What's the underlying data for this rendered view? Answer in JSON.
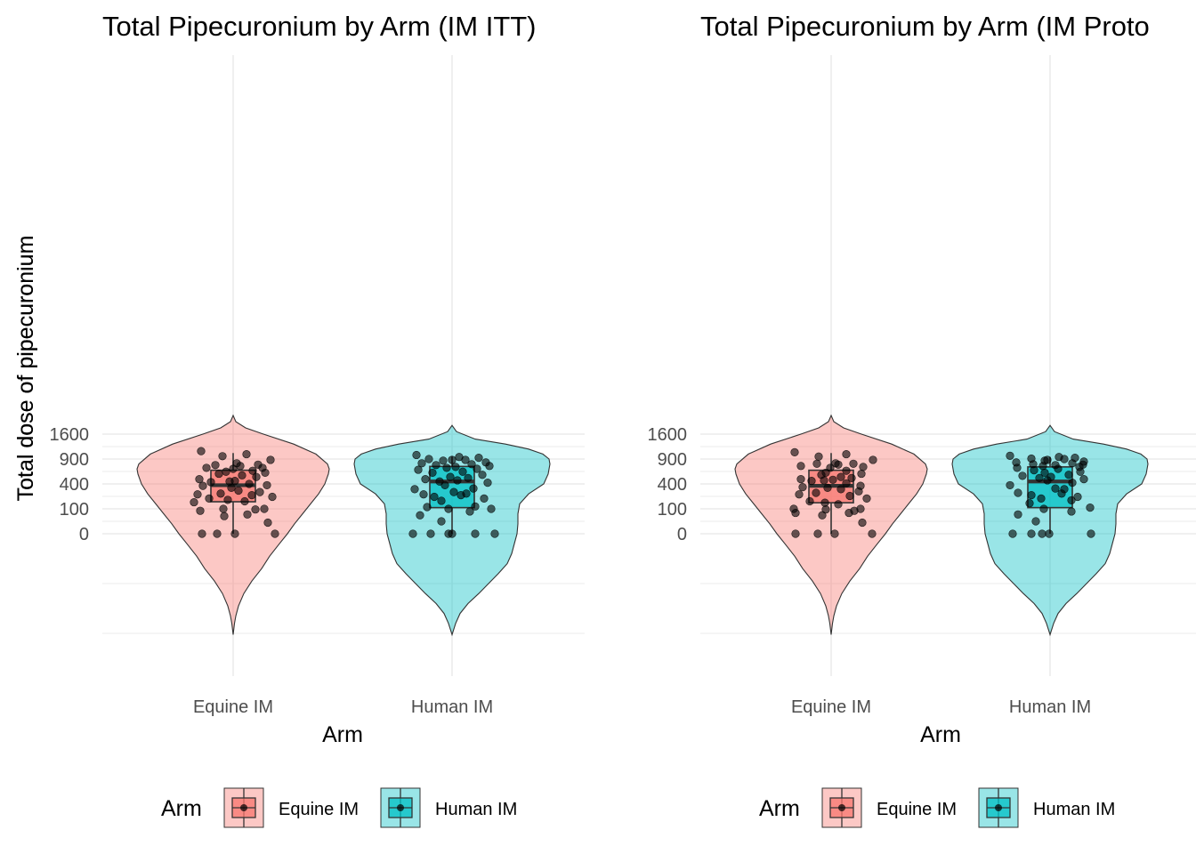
{
  "colors": {
    "equine": "#F8766D",
    "human": "#00BFC4",
    "grid": "#ebebeb",
    "outline": "#333333",
    "point": "#000000"
  },
  "legend": {
    "title": "Arm",
    "position": "bottom",
    "items": [
      "Equine IM",
      "Human IM"
    ]
  },
  "chart_data": [
    {
      "type": "violin",
      "title": "Total Pipecuronium by Arm (IM ITT)",
      "xlabel": "Arm",
      "ylabel": "Total dose of pipecuronium",
      "scale": "square-root",
      "categories": [
        "Equine IM",
        "Human IM"
      ],
      "ytick_values": [
        0,
        100,
        400,
        900,
        1600
      ],
      "ytick_labels": [
        "0",
        "100",
        "400",
        "900",
        "1600"
      ],
      "grid": true,
      "boxplot": [
        {
          "name": "Equine IM",
          "min": 0,
          "q1": 165,
          "median": 380,
          "q3": 650,
          "max": 1050
        },
        {
          "name": "Human IM",
          "min": 0,
          "q1": 110,
          "median": 440,
          "q3": 730,
          "max": 960
        }
      ],
      "points": [
        {
          "group": "Equine IM",
          "values": [
            1100,
            1020,
            970,
            880,
            800,
            770,
            760,
            740,
            700,
            700,
            680,
            640,
            620,
            600,
            580,
            550,
            520,
            480,
            450,
            440,
            430,
            400,
            380,
            370,
            340,
            300,
            280,
            260,
            250,
            240,
            220,
            200,
            185,
            170,
            160,
            100,
            100,
            95,
            85,
            60,
            50,
            20,
            0,
            0,
            0,
            0
          ]
        },
        {
          "group": "Human IM",
          "values": [
            1000,
            950,
            930,
            900,
            880,
            880,
            860,
            820,
            800,
            780,
            760,
            740,
            720,
            700,
            680,
            660,
            620,
            600,
            560,
            520,
            500,
            480,
            460,
            440,
            420,
            380,
            330,
            320,
            280,
            260,
            250,
            240,
            220,
            200,
            175,
            120,
            115,
            100,
            100,
            80,
            55,
            25,
            0,
            0,
            0,
            0,
            0,
            0
          ]
        }
      ]
    },
    {
      "type": "violin",
      "title": "Total Pipecuronium by Arm (IM Proto",
      "xlabel": "Arm",
      "ylabel": "Total dose of pipecuronium",
      "scale": "square-root",
      "categories": [
        "Equine IM",
        "Human IM"
      ],
      "ytick_values": [
        0,
        100,
        400,
        900,
        1600
      ],
      "ytick_labels": [
        "0",
        "100",
        "400",
        "900",
        "1600"
      ],
      "grid": true,
      "boxplot": [
        {
          "name": "Equine IM",
          "min": 0,
          "q1": 155,
          "median": 370,
          "q3": 650,
          "max": 1050
        },
        {
          "name": "Human IM",
          "min": 0,
          "q1": 110,
          "median": 440,
          "q3": 720,
          "max": 950
        }
      ],
      "points": [
        {
          "group": "Equine IM",
          "values": [
            1070,
            1020,
            960,
            880,
            800,
            790,
            790,
            770,
            740,
            720,
            700,
            640,
            600,
            580,
            560,
            520,
            500,
            480,
            470,
            460,
            450,
            410,
            370,
            350,
            340,
            320,
            290,
            270,
            250,
            230,
            200,
            170,
            155,
            140,
            100,
            100,
            95,
            85,
            70,
            70,
            55,
            20,
            0,
            0,
            0,
            0
          ]
        },
        {
          "group": "Human IM",
          "values": [
            980,
            950,
            930,
            910,
            900,
            880,
            860,
            840,
            820,
            800,
            780,
            770,
            760,
            740,
            720,
            700,
            680,
            650,
            620,
            600,
            560,
            540,
            520,
            500,
            480,
            460,
            420,
            380,
            330,
            320,
            270,
            260,
            240,
            220,
            200,
            180,
            150,
            110,
            100,
            80,
            60,
            25,
            0,
            0,
            0,
            0,
            0
          ]
        }
      ]
    }
  ]
}
